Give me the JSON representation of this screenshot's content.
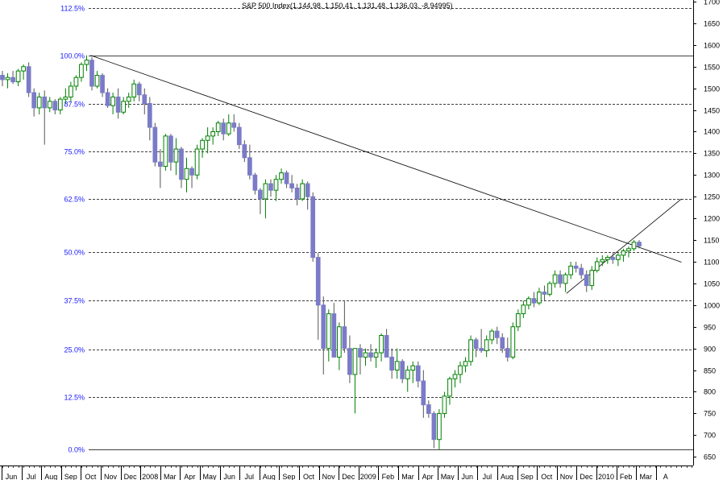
{
  "chart_data": {
    "type": "candlestick",
    "title": "S&P 500 Index(1,144.98, 1,150.41, 1,131.48, 1,136.03, -8.94995)",
    "period": "weekly",
    "ylim": [
      630,
      1700
    ],
    "y_ticks": [
      650,
      700,
      750,
      800,
      850,
      900,
      950,
      1000,
      1050,
      1100,
      1150,
      1200,
      1250,
      1300,
      1350,
      1400,
      1450,
      1500,
      1550,
      1600,
      1650,
      1700
    ],
    "fib_levels": [
      {
        "label": "112.5%",
        "value": 1686
      },
      {
        "label": "100.0%",
        "value": 1576
      },
      {
        "label": "87.5%",
        "value": 1465
      },
      {
        "label": "75.0%",
        "value": 1354
      },
      {
        "label": "62.5%",
        "value": 1244
      },
      {
        "label": "50.0%",
        "value": 1122
      },
      {
        "label": "37.5%",
        "value": 1010
      },
      {
        "label": "25.0%",
        "value": 898
      },
      {
        "label": "12.5%",
        "value": 787
      },
      {
        "label": "0.0%",
        "value": 667
      }
    ],
    "x_labels": [
      "Jun",
      "Jul",
      "Aug",
      "Sep",
      "Oct",
      "Nov",
      "Dec",
      "2008",
      "Mar",
      "Apr",
      "May",
      "Jun",
      "Jul",
      "Aug",
      "Sep",
      "Oct",
      "Nov",
      "Dec",
      "2009",
      "Feb",
      "Mar",
      "Apr",
      "May",
      "Jun",
      "Jul",
      "Aug",
      "Sep",
      "Oct",
      "Nov",
      "Dec",
      "2010",
      "Feb",
      "Mar",
      "A"
    ],
    "trendlines": [
      {
        "from": [
          4,
          1576
        ],
        "to": [
          33.8,
          1099
        ]
      },
      {
        "from": [
          28,
          1027
        ],
        "to": [
          33.8,
          1245
        ]
      }
    ],
    "candles": [
      [
        1530,
        1540,
        1505,
        1520
      ],
      [
        1520,
        1535,
        1500,
        1525
      ],
      [
        1525,
        1540,
        1510,
        1515
      ],
      [
        1515,
        1545,
        1505,
        1540
      ],
      [
        1540,
        1555,
        1520,
        1550
      ],
      [
        1550,
        1560,
        1480,
        1490
      ],
      [
        1490,
        1500,
        1435,
        1455
      ],
      [
        1455,
        1490,
        1440,
        1480
      ],
      [
        1480,
        1495,
        1370,
        1455
      ],
      [
        1455,
        1480,
        1445,
        1470
      ],
      [
        1470,
        1475,
        1440,
        1450
      ],
      [
        1450,
        1480,
        1440,
        1475
      ],
      [
        1475,
        1500,
        1465,
        1480
      ],
      [
        1480,
        1515,
        1470,
        1505
      ],
      [
        1505,
        1530,
        1495,
        1525
      ],
      [
        1525,
        1560,
        1515,
        1555
      ],
      [
        1555,
        1576,
        1540,
        1565
      ],
      [
        1565,
        1572,
        1495,
        1505
      ],
      [
        1505,
        1540,
        1500,
        1530
      ],
      [
        1530,
        1535,
        1480,
        1490
      ],
      [
        1490,
        1500,
        1455,
        1460
      ],
      [
        1460,
        1490,
        1440,
        1480
      ],
      [
        1480,
        1500,
        1430,
        1445
      ],
      [
        1445,
        1480,
        1440,
        1470
      ],
      [
        1470,
        1490,
        1455,
        1480
      ],
      [
        1480,
        1520,
        1470,
        1510
      ],
      [
        1510,
        1515,
        1470,
        1485
      ],
      [
        1485,
        1500,
        1440,
        1465
      ],
      [
        1465,
        1480,
        1380,
        1410
      ],
      [
        1410,
        1420,
        1320,
        1330
      ],
      [
        1330,
        1360,
        1270,
        1320
      ],
      [
        1320,
        1395,
        1310,
        1390
      ],
      [
        1390,
        1395,
        1310,
        1330
      ],
      [
        1330,
        1385,
        1300,
        1360
      ],
      [
        1360,
        1365,
        1270,
        1290
      ],
      [
        1290,
        1340,
        1260,
        1315
      ],
      [
        1315,
        1320,
        1270,
        1300
      ],
      [
        1300,
        1370,
        1290,
        1360
      ],
      [
        1360,
        1385,
        1340,
        1380
      ],
      [
        1380,
        1410,
        1350,
        1390
      ],
      [
        1390,
        1410,
        1370,
        1400
      ],
      [
        1400,
        1425,
        1390,
        1420
      ],
      [
        1420,
        1430,
        1380,
        1395
      ],
      [
        1395,
        1440,
        1390,
        1420
      ],
      [
        1420,
        1440,
        1400,
        1410
      ],
      [
        1410,
        1420,
        1360,
        1370
      ],
      [
        1370,
        1380,
        1330,
        1340
      ],
      [
        1340,
        1370,
        1290,
        1300
      ],
      [
        1300,
        1305,
        1255,
        1265
      ],
      [
        1265,
        1270,
        1210,
        1245
      ],
      [
        1245,
        1290,
        1200,
        1280
      ],
      [
        1280,
        1290,
        1250,
        1265
      ],
      [
        1265,
        1300,
        1240,
        1290
      ],
      [
        1290,
        1315,
        1280,
        1305
      ],
      [
        1305,
        1310,
        1270,
        1280
      ],
      [
        1280,
        1300,
        1260,
        1270
      ],
      [
        1270,
        1280,
        1230,
        1245
      ],
      [
        1245,
        1290,
        1240,
        1280
      ],
      [
        1280,
        1285,
        1220,
        1250
      ],
      [
        1250,
        1260,
        1100,
        1110
      ],
      [
        1110,
        1120,
        920,
        1000
      ],
      [
        1000,
        1020,
        840,
        900
      ],
      [
        900,
        990,
        870,
        980
      ],
      [
        980,
        1005,
        880,
        880
      ],
      [
        880,
        960,
        850,
        950
      ],
      [
        950,
        1010,
        890,
        900
      ],
      [
        900,
        930,
        820,
        840
      ],
      [
        840,
        900,
        750,
        900
      ],
      [
        900,
        910,
        840,
        880
      ],
      [
        880,
        900,
        860,
        890
      ],
      [
        890,
        910,
        870,
        880
      ],
      [
        880,
        900,
        855,
        890
      ],
      [
        890,
        935,
        870,
        930
      ],
      [
        930,
        945,
        880,
        880
      ],
      [
        880,
        900,
        830,
        850
      ],
      [
        850,
        900,
        830,
        870
      ],
      [
        870,
        875,
        820,
        830
      ],
      [
        830,
        860,
        800,
        850
      ],
      [
        850,
        870,
        820,
        860
      ],
      [
        860,
        870,
        810,
        825
      ],
      [
        825,
        850,
        740,
        770
      ],
      [
        770,
        780,
        740,
        750
      ],
      [
        750,
        755,
        670,
        690
      ],
      [
        690,
        760,
        667,
        750
      ],
      [
        750,
        800,
        740,
        790
      ],
      [
        790,
        835,
        770,
        830
      ],
      [
        830,
        850,
        810,
        840
      ],
      [
        840,
        870,
        820,
        860
      ],
      [
        860,
        880,
        845,
        870
      ],
      [
        870,
        930,
        860,
        920
      ],
      [
        920,
        925,
        880,
        900
      ],
      [
        900,
        945,
        890,
        895
      ],
      [
        895,
        930,
        880,
        920
      ],
      [
        920,
        945,
        910,
        940
      ],
      [
        940,
        950,
        910,
        925
      ],
      [
        925,
        935,
        890,
        900
      ],
      [
        900,
        925,
        870,
        880
      ],
      [
        880,
        960,
        875,
        950
      ],
      [
        950,
        990,
        940,
        980
      ],
      [
        980,
        1010,
        970,
        1000
      ],
      [
        1000,
        1020,
        990,
        1015
      ],
      [
        1015,
        1030,
        995,
        1005
      ],
      [
        1005,
        1040,
        1000,
        1030
      ],
      [
        1030,
        1045,
        1010,
        1025
      ],
      [
        1025,
        1055,
        1020,
        1050
      ],
      [
        1050,
        1080,
        1040,
        1070
      ],
      [
        1070,
        1080,
        1040,
        1050
      ],
      [
        1050,
        1075,
        1030,
        1070
      ],
      [
        1070,
        1100,
        1060,
        1090
      ],
      [
        1090,
        1100,
        1075,
        1085
      ],
      [
        1085,
        1095,
        1060,
        1070
      ],
      [
        1070,
        1080,
        1030,
        1045
      ],
      [
        1045,
        1090,
        1035,
        1080
      ],
      [
        1080,
        1110,
        1075,
        1100
      ],
      [
        1100,
        1115,
        1090,
        1105
      ],
      [
        1105,
        1115,
        1095,
        1110
      ],
      [
        1110,
        1120,
        1095,
        1105
      ],
      [
        1105,
        1120,
        1090,
        1115
      ],
      [
        1115,
        1130,
        1100,
        1125
      ],
      [
        1125,
        1135,
        1110,
        1130
      ],
      [
        1130,
        1150,
        1125,
        1145
      ],
      [
        1145,
        1150,
        1131,
        1136
      ]
    ]
  }
}
